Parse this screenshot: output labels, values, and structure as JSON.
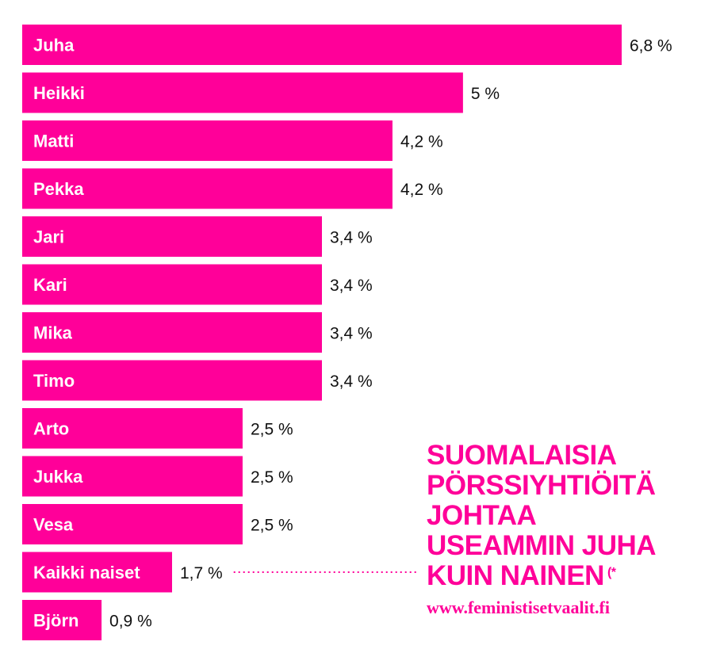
{
  "chart_data": {
    "type": "bar",
    "orientation": "horizontal",
    "categories": [
      "Juha",
      "Heikki",
      "Matti",
      "Pekka",
      "Jari",
      "Kari",
      "Mika",
      "Timo",
      "Arto",
      "Jukka",
      "Vesa",
      "Kaikki naiset",
      "Björn"
    ],
    "values": [
      6.8,
      5,
      4.2,
      4.2,
      3.4,
      3.4,
      3.4,
      3.4,
      2.5,
      2.5,
      2.5,
      1.7,
      0.9
    ],
    "value_labels": [
      "6,8 %",
      "5 %",
      "4,2 %",
      "4,2 %",
      "3,4 %",
      "3,4 %",
      "3,4 %",
      "3,4 %",
      "2,5 %",
      "2,5 %",
      "2,5 %",
      "1,7 %",
      "0,9 %"
    ],
    "highlight_category": "Kaikki naiset",
    "bar_color": "#ff0099",
    "xlim": [
      0,
      6.8
    ],
    "grid": false
  },
  "headline": {
    "lines": [
      "SUOMALAISIA",
      "PÖRSSIYHTIÖITÄ",
      "JOHTAA",
      "USEAMMIN JUHA",
      "KUIN NAINEN"
    ],
    "footnote_mark": "(*"
  },
  "website": "www.feministisetvaalit.fi",
  "colors": {
    "accent": "#ff0099",
    "text": "#111111",
    "background": "#ffffff"
  }
}
